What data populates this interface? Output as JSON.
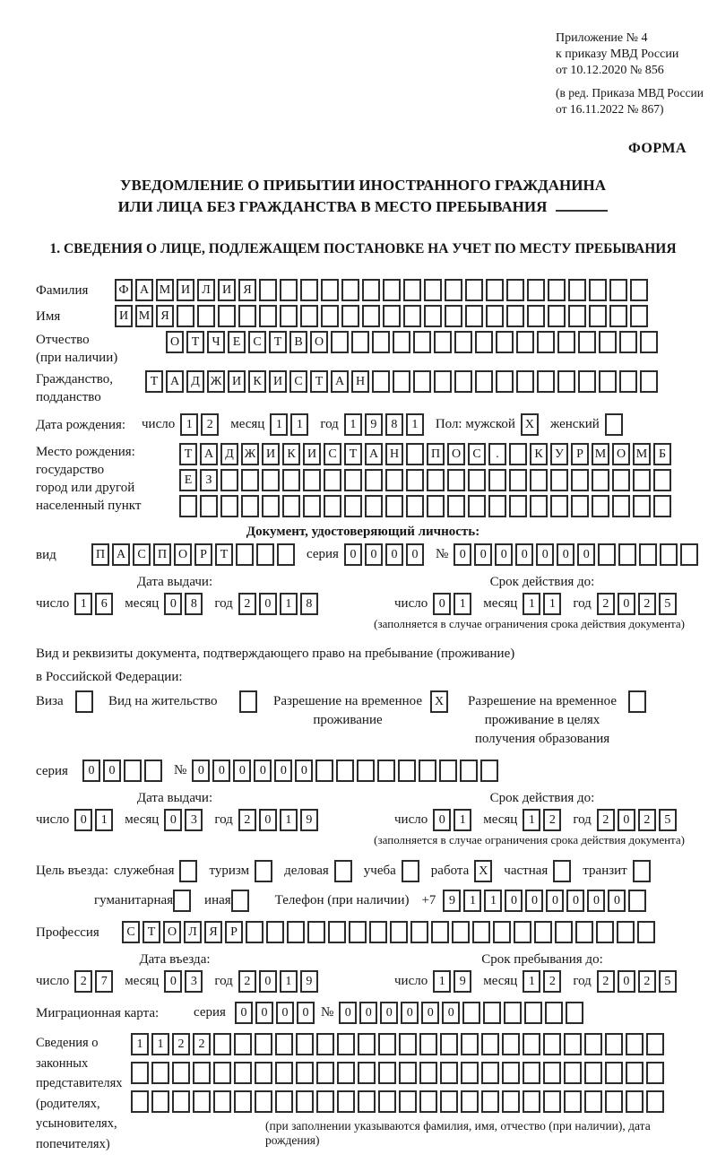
{
  "header": {
    "appendix": [
      "Приложение № 4",
      "к приказу МВД России",
      "от 10.12.2020 № 856"
    ],
    "revision": [
      "(в ред. Приказа МВД России",
      "от 16.11.2022 № 867)"
    ],
    "form_label": "ФОРМА"
  },
  "title": {
    "line1": "УВЕДОМЛЕНИЕ О ПРИБЫТИИ ИНОСТРАННОГО ГРАЖДАНИНА",
    "line2": "ИЛИ ЛИЦА БЕЗ ГРАЖДАНСТВА В МЕСТО ПРЕБЫВАНИЯ"
  },
  "section1": {
    "heading": "1. СВЕДЕНИЯ О ЛИЦЕ, ПОДЛЕЖАЩЕМ ПОСТАНОВКЕ НА УЧЕТ ПО МЕСТУ ПРЕБЫВАНИЯ"
  },
  "common": {
    "day_label": "число",
    "month_label": "месяц",
    "year_label": "год",
    "series_label": "серия",
    "number_label": "№",
    "issued_heading": "Дата выдачи:",
    "valid_heading": "Срок действия до:",
    "restriction_footnote": "(заполняется в случае ограничения срока действия документа)"
  },
  "fields": {
    "surname": {
      "label": "Фамилия",
      "boxes": {
        "count": 26,
        "value": "ФАМИЛИЯ"
      }
    },
    "name": {
      "label": "Имя",
      "boxes": {
        "count": 26,
        "value": "ИМЯ"
      }
    },
    "patronymic": {
      "label": "Отчество",
      "label_note": "(при наличии)",
      "boxes": {
        "count": 24,
        "value": "ОТЧЕСТВО"
      }
    },
    "citizenship": {
      "label": "Гражданство,",
      "label2": "подданство",
      "boxes": {
        "count": 25,
        "value": "ТАДЖИКИСТАН"
      }
    },
    "birth_date": {
      "label": "Дата рождения:",
      "day": {
        "value": "12"
      },
      "month": {
        "value": "11"
      },
      "year": {
        "value": "1981"
      },
      "sex_label": "Пол: мужской",
      "sex_male": {
        "value": "X"
      },
      "sex_female_label": "женский",
      "sex_female": {
        "count": 1,
        "value": ""
      }
    },
    "birth_place": {
      "label": "Место рождения:",
      "sub1": "государство",
      "sub2": "город или другой",
      "sub3": "населенный пункт",
      "row1": {
        "count": 24,
        "value": "ТАДЖИКИСТАН ПОС. КУРМОМБ"
      },
      "row2": {
        "count": 24,
        "value": "ЕЗ"
      },
      "row3": {
        "count": 24,
        "value": ""
      }
    },
    "identity_doc": {
      "heading": "Документ, удостоверяющий личность:",
      "type_label": "вид",
      "type": {
        "count": 10,
        "value": "ПАСПОРТ"
      },
      "series": {
        "count": 4,
        "value": "0000"
      },
      "number": {
        "count": 12,
        "value": "0000000"
      },
      "issue": {
        "day": {
          "value": "16"
        },
        "month": {
          "value": "08"
        },
        "year": {
          "value": "2018"
        }
      },
      "valid": {
        "day": {
          "value": "01"
        },
        "month": {
          "value": "11"
        },
        "year": {
          "value": "2025"
        }
      }
    },
    "residence_doc": {
      "intro1": "Вид и реквизиты документа, подтверждающего право на пребывание (проживание)",
      "intro2": "в Российской Федерации:",
      "visa_label": "Виза",
      "visa": {
        "count": 1,
        "value": ""
      },
      "residence_permit_label": "Вид на жительство",
      "residence_permit": {
        "count": 1,
        "value": ""
      },
      "temp_permit_label": "Разрешение на временное проживание",
      "temp_permit": {
        "value": "X"
      },
      "edu_permit_label": "Разрешение на временное проживание в целях получения образования",
      "edu_permit": {
        "count": 1,
        "value": ""
      },
      "series": {
        "count": 4,
        "value": "00"
      },
      "number": {
        "count": 15,
        "value": "000000"
      },
      "issue": {
        "day": {
          "value": "01"
        },
        "month": {
          "value": "03"
        },
        "year": {
          "value": "2019"
        }
      },
      "valid": {
        "day": {
          "value": "01"
        },
        "month": {
          "value": "12"
        },
        "year": {
          "value": "2025"
        }
      }
    },
    "purpose": {
      "label": "Цель въезда:",
      "items": [
        {
          "label": "служебная",
          "box": {
            "count": 1,
            "value": ""
          }
        },
        {
          "label": "туризм",
          "box": {
            "count": 1,
            "value": ""
          }
        },
        {
          "label": "деловая",
          "box": {
            "count": 1,
            "value": ""
          }
        },
        {
          "label": "учеба",
          "box": {
            "count": 1,
            "value": ""
          }
        },
        {
          "label": "работа",
          "box": {
            "value": "X"
          }
        },
        {
          "label": "частная",
          "box": {
            "count": 1,
            "value": ""
          }
        },
        {
          "label": "транзит",
          "box": {
            "count": 1,
            "value": ""
          }
        },
        {
          "label": "гуманитарная",
          "box": {
            "count": 1,
            "value": ""
          }
        },
        {
          "label": "иная",
          "box": {
            "count": 1,
            "value": ""
          }
        }
      ]
    },
    "phone": {
      "label": "Телефон (при наличии)",
      "prefix": "+7",
      "boxes": {
        "count": 10,
        "value": "911000000"
      }
    },
    "profession": {
      "label": "Профессия",
      "boxes": {
        "count": 26,
        "value": "СТОЛЯР"
      }
    },
    "entry": {
      "entry_heading": "Дата въезда:",
      "stay_heading": "Срок пребывания до:",
      "entry_date": {
        "day": {
          "value": "27"
        },
        "month": {
          "value": "03"
        },
        "year": {
          "value": "2019"
        }
      },
      "stay_until": {
        "day": {
          "value": "19"
        },
        "month": {
          "value": "12"
        },
        "year": {
          "value": "2025"
        }
      }
    },
    "migration_card": {
      "label": "Миграционная карта:",
      "series": {
        "count": 4,
        "value": "0000"
      },
      "number": {
        "count": 12,
        "value": "000000"
      }
    },
    "representatives": {
      "label_lines": [
        "Сведения о",
        "законных",
        "представителях",
        "(родителях,",
        "усыновителях,",
        "попечителях)"
      ],
      "row1": {
        "count": 26,
        "value": "1122"
      },
      "row2": {
        "count": 26,
        "value": ""
      },
      "row3": {
        "count": 26,
        "value": ""
      },
      "footnote": "(при заполнении указываются фамилия, имя, отчество (при наличии), дата рождения)"
    }
  }
}
